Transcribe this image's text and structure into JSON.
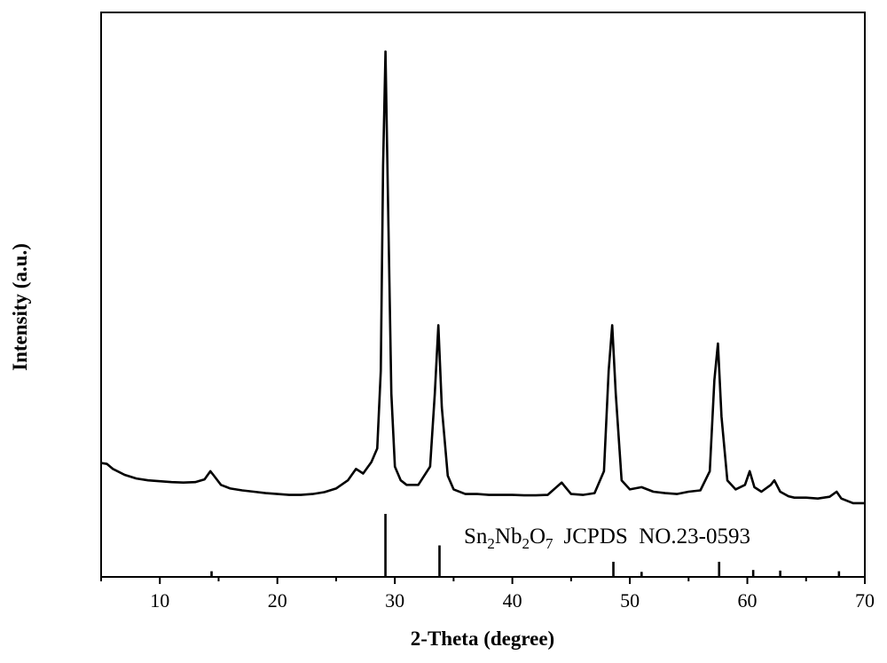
{
  "chart_data": {
    "type": "line",
    "title": "",
    "xlabel": "2-Theta (degree)",
    "ylabel": "Intensity (a.u.)",
    "xlim": [
      5,
      70
    ],
    "x_ticks": [
      10,
      20,
      30,
      40,
      50,
      60,
      70
    ],
    "y_ticks_shown": false,
    "grid": false,
    "legend": "none",
    "series": [
      {
        "color": "#000000",
        "points": [
          [
            5.0,
            0.098
          ],
          [
            5.5,
            0.096
          ],
          [
            6,
            0.085
          ],
          [
            7,
            0.072
          ],
          [
            8,
            0.064
          ],
          [
            9,
            0.06
          ],
          [
            10,
            0.058
          ],
          [
            11,
            0.056
          ],
          [
            12,
            0.055
          ],
          [
            13,
            0.056
          ],
          [
            13.8,
            0.062
          ],
          [
            14.3,
            0.08
          ],
          [
            14.6,
            0.07
          ],
          [
            15.2,
            0.05
          ],
          [
            16,
            0.042
          ],
          [
            17,
            0.038
          ],
          [
            18,
            0.035
          ],
          [
            19,
            0.032
          ],
          [
            20,
            0.03
          ],
          [
            21,
            0.028
          ],
          [
            22,
            0.028
          ],
          [
            23,
            0.03
          ],
          [
            24,
            0.034
          ],
          [
            25,
            0.042
          ],
          [
            26,
            0.06
          ],
          [
            26.7,
            0.085
          ],
          [
            27.3,
            0.075
          ],
          [
            28,
            0.1
          ],
          [
            28.5,
            0.13
          ],
          [
            28.8,
            0.3
          ],
          [
            29.0,
            0.75
          ],
          [
            29.2,
            1.0
          ],
          [
            29.4,
            0.7
          ],
          [
            29.7,
            0.25
          ],
          [
            30.0,
            0.09
          ],
          [
            30.5,
            0.06
          ],
          [
            31,
            0.05
          ],
          [
            32,
            0.05
          ],
          [
            33,
            0.09
          ],
          [
            33.4,
            0.25
          ],
          [
            33.7,
            0.4
          ],
          [
            34.0,
            0.22
          ],
          [
            34.5,
            0.07
          ],
          [
            35,
            0.04
          ],
          [
            36,
            0.03
          ],
          [
            37,
            0.03
          ],
          [
            38,
            0.028
          ],
          [
            39,
            0.028
          ],
          [
            40,
            0.028
          ],
          [
            41,
            0.027
          ],
          [
            42,
            0.027
          ],
          [
            43,
            0.028
          ],
          [
            44.2,
            0.055
          ],
          [
            45,
            0.03
          ],
          [
            46,
            0.028
          ],
          [
            47,
            0.032
          ],
          [
            47.8,
            0.08
          ],
          [
            48.2,
            0.3
          ],
          [
            48.5,
            0.4
          ],
          [
            48.8,
            0.25
          ],
          [
            49.3,
            0.06
          ],
          [
            50,
            0.04
          ],
          [
            51,
            0.045
          ],
          [
            52,
            0.035
          ],
          [
            53,
            0.032
          ],
          [
            54,
            0.03
          ],
          [
            55,
            0.035
          ],
          [
            56,
            0.038
          ],
          [
            56.8,
            0.08
          ],
          [
            57.2,
            0.28
          ],
          [
            57.5,
            0.36
          ],
          [
            57.8,
            0.2
          ],
          [
            58.3,
            0.06
          ],
          [
            59,
            0.04
          ],
          [
            59.8,
            0.05
          ],
          [
            60.2,
            0.08
          ],
          [
            60.6,
            0.045
          ],
          [
            61.2,
            0.035
          ],
          [
            62,
            0.05
          ],
          [
            62.3,
            0.06
          ],
          [
            62.8,
            0.035
          ],
          [
            63.5,
            0.025
          ],
          [
            64,
            0.022
          ],
          [
            65,
            0.022
          ],
          [
            66,
            0.02
          ],
          [
            67,
            0.024
          ],
          [
            67.6,
            0.035
          ],
          [
            68,
            0.02
          ],
          [
            69,
            0.01
          ],
          [
            70,
            0.01
          ]
        ]
      }
    ],
    "reference_pattern": {
      "label_formula": {
        "el1": "Sn",
        "n1": "2",
        "el2": "Nb",
        "n2": "2",
        "el3": "O",
        "n3": "7"
      },
      "label_text": "JCPDS  NO.23-0593",
      "lines": [
        [
          14.4,
          0.09
        ],
        [
          29.2,
          1.0
        ],
        [
          33.8,
          0.5
        ],
        [
          48.6,
          0.24
        ],
        [
          51.0,
          0.08
        ],
        [
          57.6,
          0.24
        ],
        [
          60.5,
          0.11
        ],
        [
          62.8,
          0.1
        ],
        [
          67.8,
          0.09
        ]
      ]
    }
  }
}
